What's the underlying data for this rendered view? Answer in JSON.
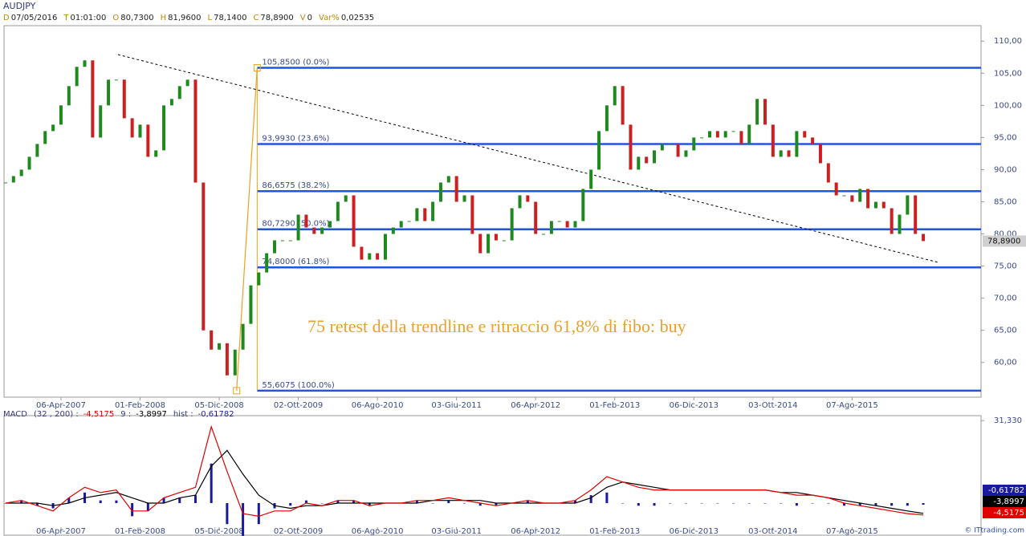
{
  "chart_data": [
    {
      "type": "line",
      "title": "AUDJPY",
      "info": [
        {
          "key": "D",
          "value": "07/05/2016"
        },
        {
          "key": "T",
          "value": "01:01:00"
        },
        {
          "key": "O",
          "value": "80,7300"
        },
        {
          "key": "H",
          "value": "81,9600"
        },
        {
          "key": "L",
          "value": "78,1400"
        },
        {
          "key": "C",
          "value": "78,8900"
        },
        {
          "key": "V",
          "value": "0"
        },
        {
          "key": "Var%",
          "value": "0,02535"
        }
      ],
      "x": [
        -7,
        -6,
        -5,
        -4,
        -3,
        -2,
        -1,
        0,
        1,
        2,
        3,
        4,
        5,
        6,
        7,
        8,
        9,
        10,
        11,
        12,
        13,
        14,
        15,
        16,
        17,
        18,
        19,
        20,
        21,
        22,
        23,
        24,
        25,
        26,
        27,
        28,
        29,
        30,
        31,
        32,
        33,
        34,
        35,
        36,
        37,
        38,
        39,
        40,
        41,
        42,
        43,
        44,
        45,
        46,
        47,
        48,
        49,
        50,
        51,
        52,
        53,
        54,
        55,
        56,
        57,
        58,
        59,
        60,
        61,
        62,
        63,
        64,
        65,
        66,
        67,
        68,
        69,
        70,
        71,
        72,
        73,
        74,
        75,
        76,
        77,
        78,
        79,
        80,
        81,
        82,
        83,
        84,
        85,
        86,
        87,
        88,
        89,
        90,
        91,
        92,
        93,
        94,
        95,
        96,
        97,
        98,
        99,
        100,
        101,
        102,
        103,
        104,
        105,
        106,
        107,
        108,
        109
      ],
      "values": [
        88,
        89,
        90,
        92,
        94,
        96,
        97,
        100,
        103,
        106,
        107,
        95,
        100,
        104,
        104,
        98,
        95,
        97,
        92,
        93,
        100,
        101,
        103,
        104,
        88,
        65,
        62,
        63,
        58,
        62,
        66,
        72,
        74,
        77,
        79,
        79,
        79,
        83,
        81,
        80,
        81,
        82,
        85,
        86,
        78,
        76,
        77,
        76,
        80,
        81,
        82,
        82,
        84,
        82,
        85,
        88,
        89,
        85,
        86,
        80,
        77,
        80,
        79,
        79,
        84,
        86,
        85,
        80,
        80,
        82,
        82,
        81,
        82,
        87,
        90,
        96,
        100,
        103,
        97,
        90,
        92,
        91,
        93,
        94,
        94,
        92,
        93,
        95,
        95,
        96,
        95,
        96,
        96,
        94,
        97,
        101,
        97,
        92,
        93,
        92,
        96,
        95,
        94,
        91,
        88,
        86,
        86,
        85,
        87,
        84,
        85,
        84,
        80,
        83,
        86,
        80,
        78.89
      ],
      "up_color": "#1e8a1e",
      "down_color": "#cc1f1f",
      "xlim": [
        -7.2,
        116.3
      ],
      "xticks": [
        {
          "value": 0,
          "label": "06-Apr-2007"
        },
        {
          "value": 10,
          "label": "01-Feb-2008"
        },
        {
          "value": 20,
          "label": "05-Dic-2008"
        },
        {
          "value": 30,
          "label": "02-Ott-2009"
        },
        {
          "value": 40,
          "label": "06-Ago-2010"
        },
        {
          "value": 50,
          "label": "03-Giu-2011"
        },
        {
          "value": 60,
          "label": "06-Apr-2012"
        },
        {
          "value": 70,
          "label": "01-Feb-2013"
        },
        {
          "value": 80,
          "label": "06-Dic-2013"
        },
        {
          "value": 90,
          "label": "03-Ott-2014"
        },
        {
          "value": 100,
          "label": "07-Ago-2015"
        }
      ],
      "ylim": [
        54.6,
        112.4
      ],
      "yticks": [
        {
          "value": 60,
          "label": "60,00"
        },
        {
          "value": 65,
          "label": "65,00"
        },
        {
          "value": 70,
          "label": "70,00"
        },
        {
          "value": 75,
          "label": "75,00"
        },
        {
          "value": 80,
          "label": "80,00"
        },
        {
          "value": 85,
          "label": "85,00"
        },
        {
          "value": 90,
          "label": "90,00"
        },
        {
          "value": 95,
          "label": "95,00"
        },
        {
          "value": 100,
          "label": "100,00"
        },
        {
          "value": 105,
          "label": "105,00"
        },
        {
          "value": 110,
          "label": "110,00"
        }
      ],
      "trendline": {
        "x": [
          7.2,
          110.8
        ],
        "values": [
          107.9,
          75.6
        ]
      },
      "fib": {
        "x": [
          22.2,
          24.8
        ],
        "values": [
          55.6075,
          105.85
        ],
        "levels": [
          {
            "value": 105.85,
            "label": "105,8500 (0.0%)"
          },
          {
            "value": 93.993,
            "label": "93,9930 (23.6%)"
          },
          {
            "value": 86.6575,
            "label": "86,6575 (38.2%)"
          },
          {
            "value": 80.729,
            "label": "80,7290 (50.0%)"
          },
          {
            "value": 74.8,
            "label": "74,8000 (61.8%)"
          },
          {
            "value": 55.6075,
            "label": "55,6075 (100.0%)"
          }
        ]
      },
      "last_price": {
        "value": 78.89,
        "label": "78,8900"
      },
      "annotation": "75 retest della trendline e ritraccio 61,8% di fibo: buy"
    },
    {
      "type": "macd",
      "title": "MACD",
      "x": [
        -7,
        -5,
        -3,
        -1,
        1,
        3,
        5,
        7,
        9,
        11,
        13,
        15,
        17,
        19,
        21,
        23,
        25,
        27,
        29,
        31,
        33,
        35,
        37,
        39,
        41,
        43,
        45,
        47,
        49,
        51,
        53,
        55,
        57,
        59,
        61,
        63,
        65,
        67,
        69,
        71,
        73,
        75,
        77,
        79,
        81,
        83,
        85,
        87,
        89,
        91,
        93,
        95,
        97,
        99,
        101,
        103,
        105,
        107,
        109
      ],
      "ylim": [
        -12.2,
        33.2
      ],
      "yticks": [
        {
          "value": 31.33,
          "label": "31,330"
        }
      ],
      "series": [
        {
          "name": "(32 , 200) :",
          "color": "#e00000",
          "last_label": "-4,5175",
          "values": [
            0,
            1,
            -1,
            -3,
            2,
            6,
            4,
            5,
            -3,
            -3,
            2,
            4,
            6,
            29,
            12,
            -4,
            -5,
            -3,
            -3,
            0,
            -1,
            1,
            1,
            -1,
            0,
            0,
            1,
            1,
            2,
            1,
            0,
            -1,
            0,
            1,
            0,
            0,
            1,
            5,
            10,
            8,
            6,
            5,
            5,
            5,
            5,
            5,
            5,
            5,
            5,
            4,
            3,
            3,
            2,
            0,
            -1,
            -2,
            -3,
            -4,
            -4.5175
          ]
        },
        {
          "name": "9 :",
          "color": "#000000",
          "last_label": "-3,8997",
          "values": [
            0,
            0,
            0,
            -1,
            0,
            2,
            3,
            4,
            2,
            0,
            0,
            2,
            3,
            14,
            20,
            11,
            3,
            -1,
            -2,
            -1,
            -1,
            0,
            0,
            0,
            0,
            0,
            0,
            1,
            1,
            1,
            1,
            0,
            0,
            0,
            0,
            0,
            0,
            2,
            6,
            8,
            7,
            6,
            5,
            5,
            5,
            5,
            5,
            5,
            5,
            4,
            4,
            3,
            2,
            1,
            0,
            -1,
            -2,
            -3,
            -3.8997
          ]
        },
        {
          "name": "hist :",
          "color": "#1a1aa0",
          "last_label": "-0,61782",
          "values": [
            0,
            1,
            -1,
            -2,
            2,
            4,
            1,
            1,
            -5,
            -3,
            2,
            2,
            3,
            15,
            -8,
            -15,
            -8,
            -2,
            -1,
            1,
            0,
            1,
            1,
            -1,
            0,
            0,
            1,
            0,
            1,
            0,
            -1,
            -1,
            0,
            1,
            0,
            0,
            1,
            3,
            4,
            0,
            -1,
            -1,
            0,
            0,
            0,
            0,
            0,
            0,
            0,
            0,
            -1,
            0,
            0,
            -1,
            -1,
            -1,
            -1,
            -1,
            -0.61782
          ]
        }
      ]
    },
    {
      "copyright": "© ITtrading.com"
    }
  ]
}
